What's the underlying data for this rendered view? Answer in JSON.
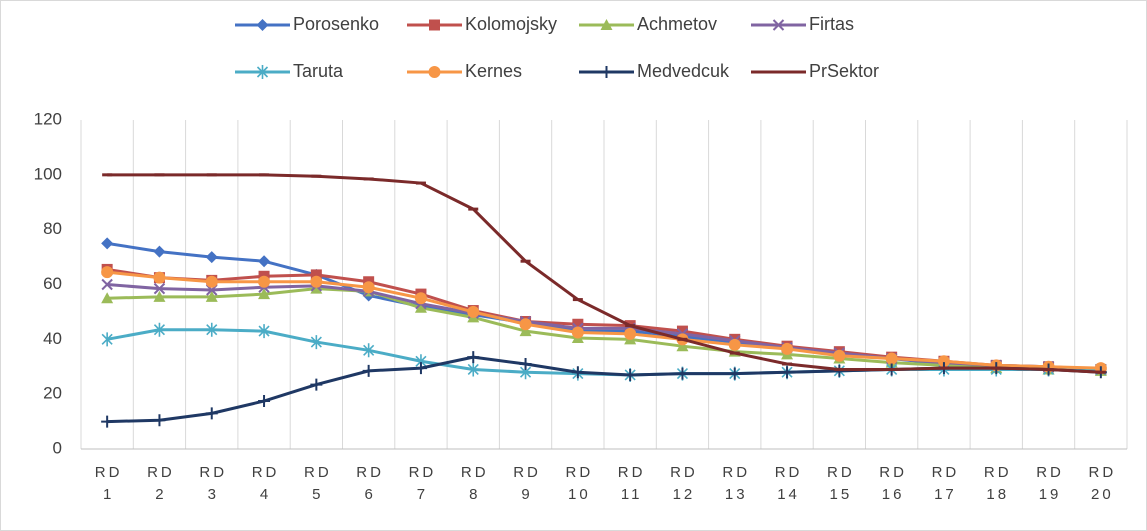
{
  "chart_data": {
    "type": "line",
    "categories": [
      "RD 1",
      "RD 2",
      "RD 3",
      "RD 4",
      "RD 5",
      "RD 6",
      "RD 7",
      "RD 8",
      "RD 9",
      "RD 10",
      "RD 11",
      "RD 12",
      "RD 13",
      "RD 14",
      "RD 15",
      "RD 16",
      "RD 17",
      "RD 18",
      "RD 19",
      "RD 20"
    ],
    "series": [
      {
        "name": "Porosenko",
        "color": "#4472c4",
        "marker": "diamond",
        "values": [
          75,
          72,
          70,
          68.5,
          63.5,
          56,
          52,
          49,
          46,
          43,
          43,
          41,
          39,
          37,
          35,
          33,
          31,
          30,
          29.5,
          29
        ]
      },
      {
        "name": "Kolomojsky",
        "color": "#c0504d",
        "marker": "square",
        "values": [
          65.5,
          62.5,
          61.5,
          63,
          63.5,
          61,
          56.5,
          50.5,
          46.5,
          45.5,
          45,
          43,
          40,
          37.5,
          35.5,
          33.5,
          32,
          30.5,
          30,
          29
        ]
      },
      {
        "name": "Achmetov",
        "color": "#9bbb59",
        "marker": "triangle",
        "values": [
          55,
          55.5,
          55.5,
          56.5,
          58.5,
          57.5,
          51.5,
          48,
          43,
          40.5,
          40,
          37.5,
          35.5,
          34.5,
          33,
          31.5,
          30.5,
          29.5,
          29,
          28.5
        ]
      },
      {
        "name": "Firtas",
        "color": "#8064a2",
        "marker": "x",
        "values": [
          60,
          58.5,
          58,
          59,
          59.5,
          57.5,
          53,
          49.5,
          46.5,
          44,
          44,
          42,
          39.5,
          37,
          35,
          33,
          31.5,
          30.5,
          30,
          29
        ]
      },
      {
        "name": "Taruta",
        "color": "#4bacc6",
        "marker": "asterisk",
        "values": [
          40,
          43.5,
          43.5,
          43,
          39,
          36,
          32,
          29,
          28,
          27.5,
          27,
          27.5,
          27.5,
          28,
          28.5,
          29,
          29,
          29,
          29,
          29
        ]
      },
      {
        "name": "Kernes",
        "color": "#f79646",
        "marker": "circle",
        "values": [
          64.5,
          62.5,
          61,
          61,
          61,
          59,
          55,
          50,
          45.5,
          42.5,
          42,
          40,
          38,
          36.5,
          34,
          33,
          32,
          30.5,
          30,
          29.5
        ]
      },
      {
        "name": "Medvedcuk",
        "color": "#1f3864",
        "marker": "plus",
        "values": [
          10,
          10.5,
          13,
          17.5,
          23.5,
          28.5,
          29.5,
          33.5,
          31,
          28,
          27,
          27.5,
          27.5,
          28,
          28.5,
          29,
          29.5,
          29.5,
          29,
          28
        ]
      },
      {
        "name": "PrSektor",
        "color": "#7b2a2a",
        "marker": "dash",
        "values": [
          100,
          100,
          100,
          100,
          99.5,
          98.5,
          97,
          87.5,
          68.5,
          54.5,
          45,
          40,
          35,
          31,
          29,
          29,
          29.5,
          29.5,
          29,
          28
        ]
      }
    ],
    "ylim": [
      0,
      120
    ],
    "yticks": [
      0,
      20,
      40,
      60,
      80,
      100,
      120
    ],
    "legend": "top"
  }
}
